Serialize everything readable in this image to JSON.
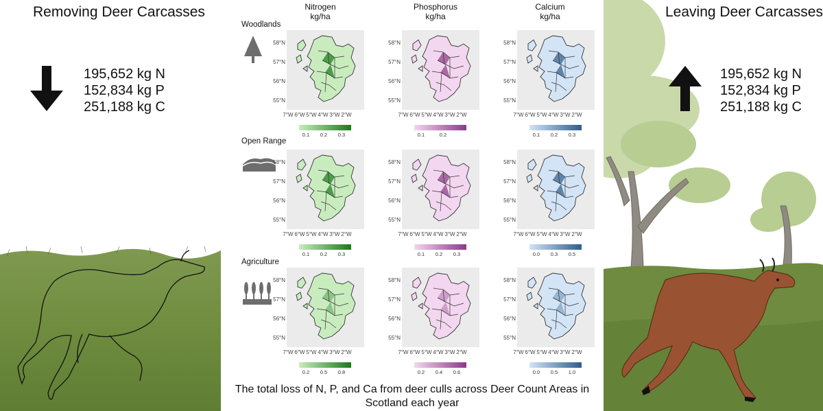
{
  "left": {
    "title": "Removing Deer Carcasses",
    "totals": [
      "195,652 kg N",
      "152,834 kg P",
      "251,188 kg C"
    ]
  },
  "right": {
    "title": "Leaving Deer Carcasses",
    "totals": [
      "195,652 kg N",
      "152,834 kg P",
      "251,188 kg C"
    ]
  },
  "columns": [
    {
      "name": "Nitrogen",
      "unit": "kg/ha",
      "color_low": "#c9ecbf",
      "color_high": "#1a7a1a"
    },
    {
      "name": "Phosphorus",
      "unit": "kg/ha",
      "color_low": "#f3d6ef",
      "color_high": "#8a3a88"
    },
    {
      "name": "Calcium",
      "unit": "kg/ha",
      "color_low": "#d2e4f6",
      "color_high": "#2f5d8a"
    }
  ],
  "rows": [
    {
      "label": "Woodlands",
      "icon": "tree-icon",
      "legends": [
        [
          "0.1",
          "0.2",
          "0.3"
        ],
        [
          "0.1",
          "0.2"
        ],
        [
          "0.1",
          "0.2",
          "0.3"
        ]
      ]
    },
    {
      "label": "Open Range",
      "icon": "hills-icon",
      "legends": [
        [
          "0.1",
          "0.2",
          "0.3"
        ],
        [
          "0.1",
          "0.2",
          "0.3"
        ],
        [
          "0.0",
          "0.3",
          "0.5"
        ]
      ]
    },
    {
      "label": "Agriculture",
      "icon": "crops-icon",
      "legends": [
        [
          "0.2",
          "0.5",
          "0.8"
        ],
        [
          "0.2",
          "0.4",
          "0.6"
        ],
        [
          "0.0",
          "0.5",
          "1.0"
        ]
      ]
    }
  ],
  "lat_labels": [
    "58°N",
    "57°N",
    "56°N",
    "55°N"
  ],
  "lon_labels": [
    "7°W",
    "6°W",
    "5°W",
    "4°W",
    "3°W",
    "2°W"
  ],
  "caption": "The total loss of N, P, and Ca from deer culls across Deer Count Areas in Scotland each year"
}
